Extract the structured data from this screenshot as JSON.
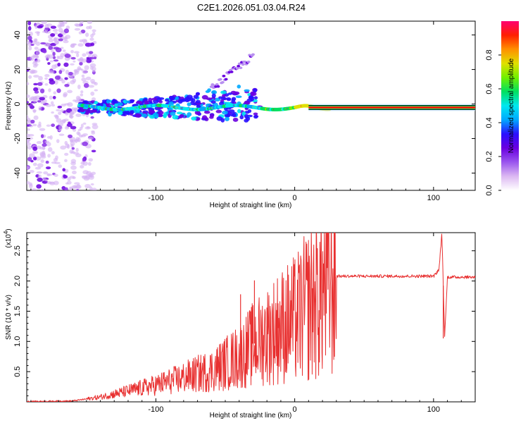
{
  "title": "C2E1.2026.051.03.04.R24",
  "chart_data": [
    {
      "type": "heatmap",
      "name": "spectrogram",
      "xlabel": "Height of straight line (km)",
      "ylabel": "Frequency (Hz)",
      "xlim": [
        -193,
        130
      ],
      "ylim": [
        -50,
        48
      ],
      "xticks": [
        -100,
        0,
        100
      ],
      "yticks": [
        -40,
        -20,
        0,
        20,
        40
      ],
      "colorbar": {
        "label": "Normalized spectral amplitude",
        "range": [
          0.0,
          1.0
        ],
        "ticks": [
          0.0,
          0.2,
          0.4,
          0.6,
          0.8
        ],
        "tick_labels": [
          "0.0",
          "0.2",
          "0.4",
          "0.6",
          "0.8"
        ],
        "colors": [
          "#ffffff",
          "#dcb8f2",
          "#9a55ee",
          "#6a00e0",
          "#2a10ff",
          "#00a8ff",
          "#00e8f0",
          "#00e060",
          "#70f000",
          "#e0e000",
          "#ff9000",
          "#ff2000",
          "#ff0070"
        ]
      },
      "main_track": {
        "freq_hz": -2,
        "strong_from_km": 0,
        "strong_to_km": 130
      },
      "secondary_track": {
        "from_km": -60,
        "to_km": -30,
        "freq_from_hz": 15,
        "freq_to_hz": 28
      }
    },
    {
      "type": "line",
      "name": "snr",
      "xlabel": "Height of straight line (km)",
      "ylabel": "SNR (10 * v/v)",
      "yscale_label": "(x10",
      "yscale_exp": "4",
      "xlim": [
        -193,
        130
      ],
      "ylim": [
        0,
        28000
      ],
      "xticks": [
        -100,
        0,
        100
      ],
      "yticks": [
        5000,
        10000,
        15000,
        20000,
        25000
      ],
      "ytick_labels": [
        "0.5",
        "1.0",
        "1.5",
        "2.0",
        "2.5"
      ],
      "series_color": "#e83030",
      "envelope_x": [
        -193,
        -160,
        -140,
        -120,
        -100,
        -80,
        -60,
        -40,
        -30,
        -20,
        -10,
        0,
        10,
        20,
        30,
        40,
        60,
        80,
        100,
        104,
        106,
        108,
        110,
        130
      ],
      "envelope_y": [
        60,
        150,
        800,
        1800,
        2800,
        4000,
        5200,
        7500,
        9500,
        11000,
        12500,
        13500,
        16000,
        18500,
        20500,
        21000,
        20900,
        20800,
        20700,
        22000,
        28000,
        10500,
        20600,
        20700
      ],
      "spikes": [
        {
          "x": -39,
          "y": 17800
        },
        {
          "x": -29,
          "y": 20100
        },
        {
          "x": -20,
          "y": 15600
        },
        {
          "x": -12,
          "y": 16300
        },
        {
          "x": 106,
          "y": 28000
        },
        {
          "x": 107,
          "y": 10500
        }
      ]
    }
  ]
}
